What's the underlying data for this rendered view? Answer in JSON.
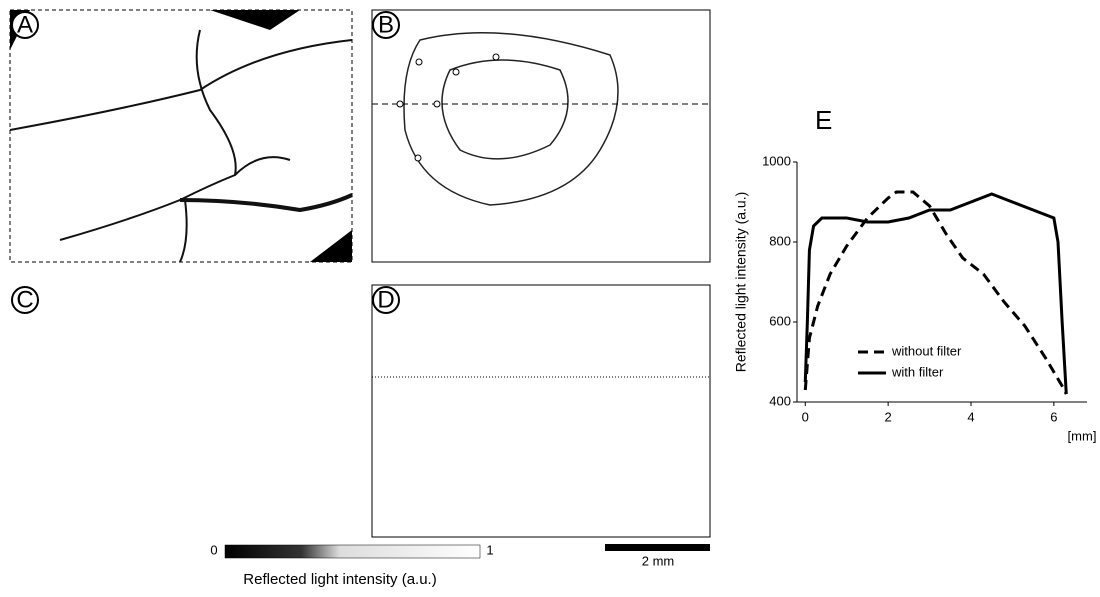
{
  "panels": {
    "a": "A",
    "b": "B",
    "c": "C",
    "d": "D"
  },
  "colorbar": {
    "min": 0,
    "max": 1,
    "label": "Reflected light intensity (a.u.)"
  },
  "scale_bar": "2 mm",
  "chart_data": {
    "type": "line",
    "title": "E",
    "y_label": "Reflected light intensity (a.u.)",
    "x_label": "[mm]",
    "xlim": [
      -0.2,
      6.8
    ],
    "ylim": [
      400,
      1000
    ],
    "xticks": [
      0,
      2,
      4,
      6
    ],
    "yticks": [
      400,
      600,
      800,
      1000
    ],
    "legend": "lower center",
    "series": [
      {
        "name": "without filter",
        "color": "#000000",
        "dash": true,
        "x": [
          0,
          0.1,
          0.3,
          0.6,
          1,
          1.5,
          2,
          2.2,
          2.6,
          3,
          3.4,
          3.8,
          4.3,
          4.8,
          5.3,
          5.8,
          6.2,
          6.3
        ],
        "values": [
          430,
          560,
          640,
          720,
          790,
          860,
          910,
          925,
          925,
          890,
          820,
          760,
          720,
          650,
          590,
          510,
          440,
          420
        ]
      },
      {
        "name": "with filter",
        "color": "#000000",
        "dash": false,
        "x": [
          0,
          0.05,
          0.1,
          0.2,
          0.4,
          1,
          1.5,
          2,
          2.5,
          3,
          3.5,
          4,
          4.5,
          5,
          5.5,
          6,
          6.1,
          6.2,
          6.3
        ],
        "values": [
          450,
          600,
          780,
          840,
          860,
          860,
          850,
          850,
          860,
          880,
          880,
          900,
          920,
          900,
          880,
          860,
          800,
          600,
          420
        ]
      }
    ]
  }
}
